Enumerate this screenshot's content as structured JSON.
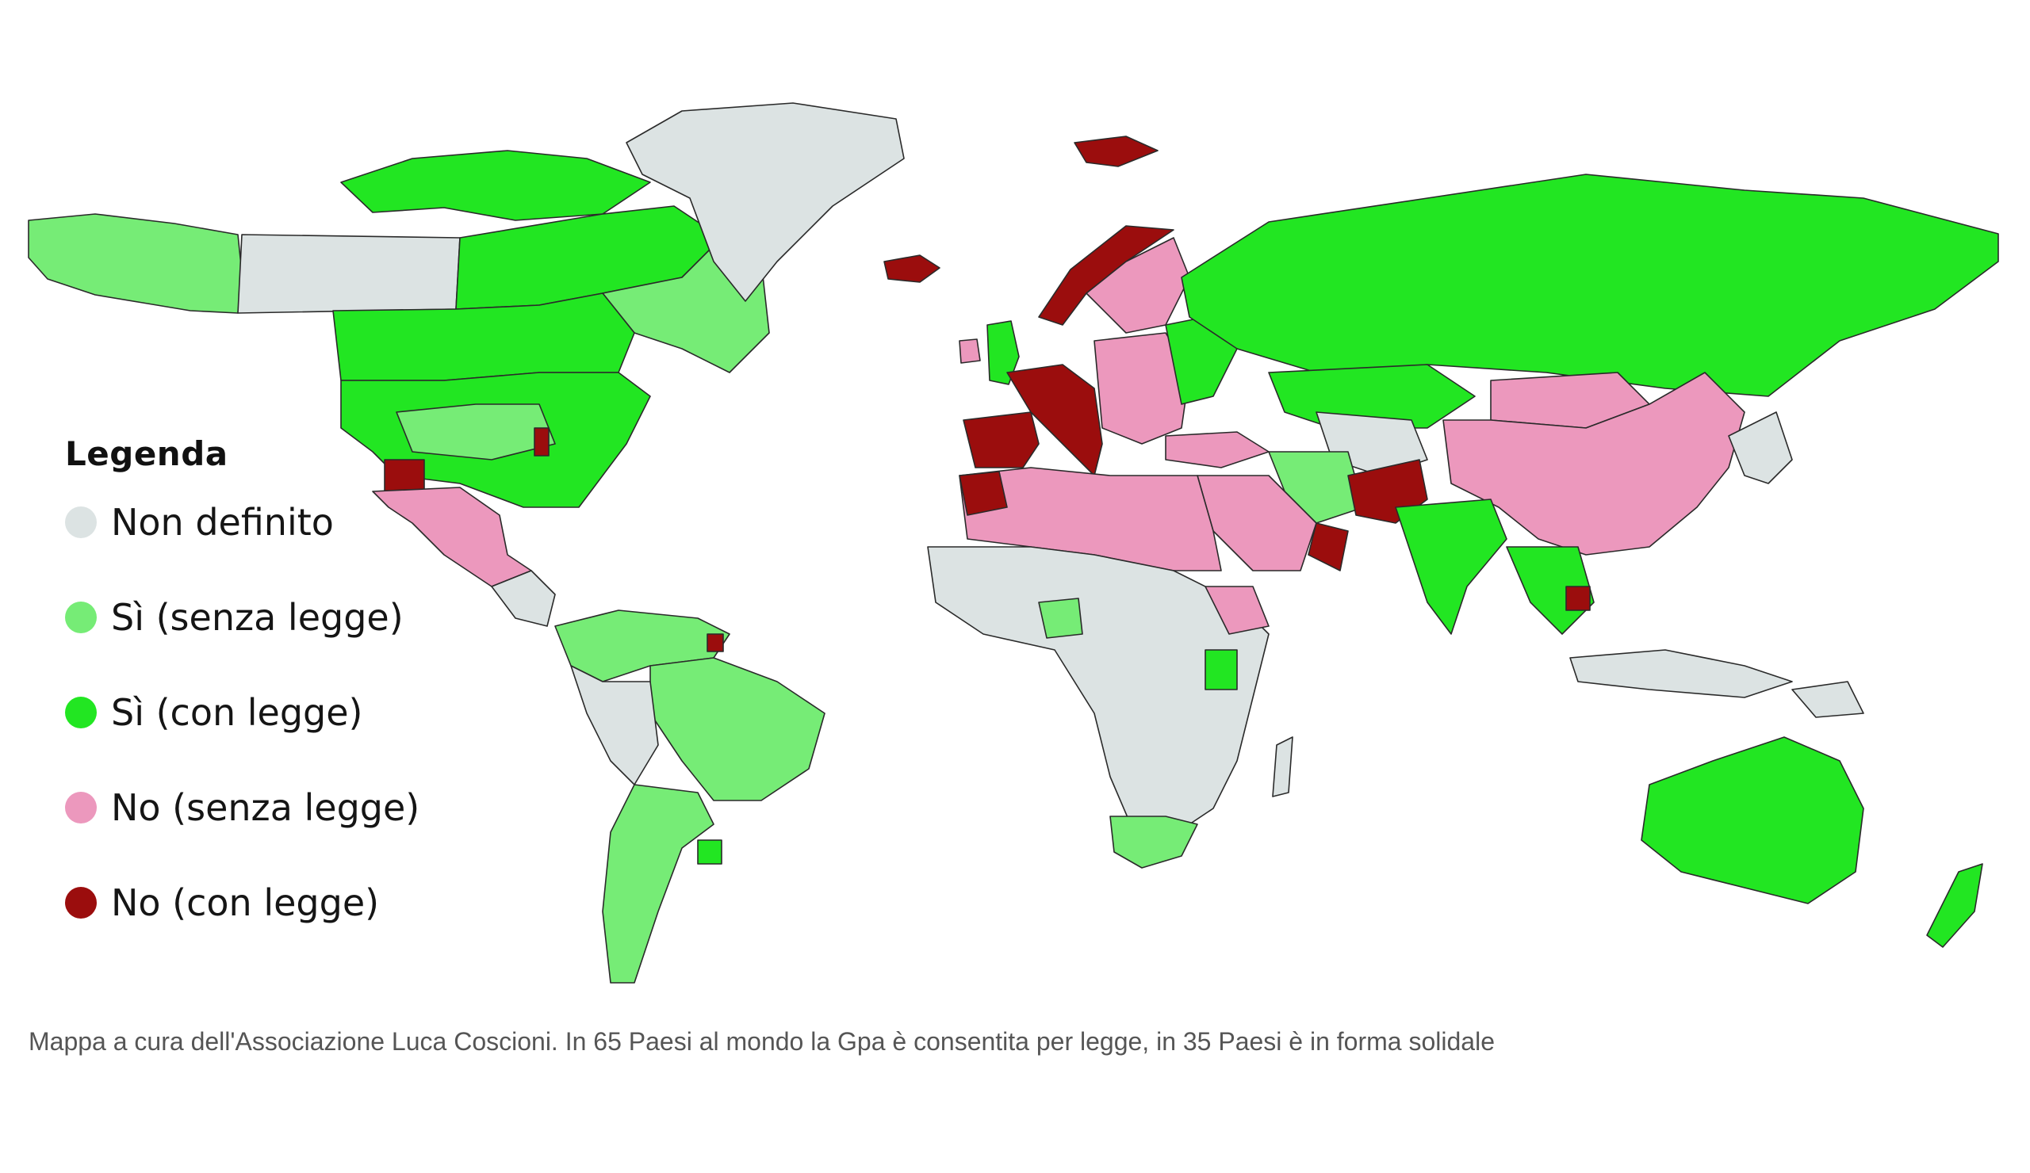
{
  "legend": {
    "title": "Legenda",
    "items": [
      {
        "label": "Non definito",
        "color": "#dce3e3"
      },
      {
        "label": "Sì (senza legge)",
        "color": "#76ec76"
      },
      {
        "label": "Sì (con legge)",
        "color": "#22e622"
      },
      {
        "label": "No (senza legge)",
        "color": "#ec98bd"
      },
      {
        "label": "No (con legge)",
        "color": "#9b0d0d"
      }
    ]
  },
  "caption": "Mappa a cura dell'Associazione Luca Coscioni. In 65 Paesi al mondo la Gpa è consentita per legge, in 35 Paesi è in forma solidale"
}
